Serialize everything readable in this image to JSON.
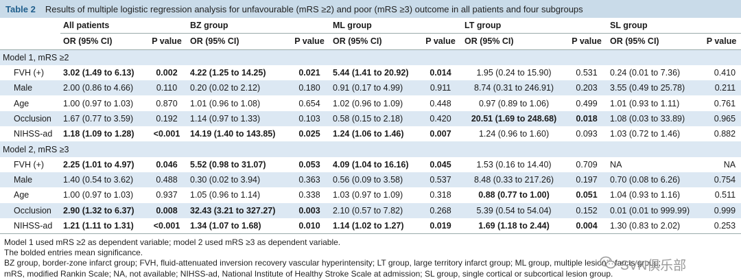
{
  "title": {
    "tag": "Table 2",
    "text": "Results of multiple logistic regression analysis for unfavourable (mRS ≥2) and poor (mRS ≥3) outcome in all patients and four subgroups"
  },
  "groups": [
    "All patients",
    "BZ group",
    "ML group",
    "LT group",
    "SL group"
  ],
  "subheaders": {
    "or": "OR (95% CI)",
    "p": "P value"
  },
  "models": [
    {
      "label": "Model 1, mRS ≥2",
      "rows": [
        {
          "label": "FVH (+)",
          "cells": [
            {
              "or": "3.02 (1.49 to 6.13)",
              "p": "0.002",
              "bold": true
            },
            {
              "or": "4.22 (1.25 to 14.25)",
              "p": "0.021",
              "bold": true
            },
            {
              "or": "5.44 (1.41 to 20.92)",
              "p": "0.014",
              "bold": true
            },
            {
              "or": "1.95 (0.24 to 15.90)",
              "p": "0.531",
              "bold": false
            },
            {
              "or": "0.24 (0.01 to 7.36)",
              "p": "0.410",
              "bold": false
            }
          ]
        },
        {
          "label": "Male",
          "cells": [
            {
              "or": "2.00 (0.86 to 4.66)",
              "p": "0.110",
              "bold": false
            },
            {
              "or": "0.20 (0.02 to 2.12)",
              "p": "0.180",
              "bold": false
            },
            {
              "or": "0.91 (0.17 to 4.99)",
              "p": "0.911",
              "bold": false
            },
            {
              "or": "8.74 (0.31 to 246.91)",
              "p": "0.203",
              "bold": false
            },
            {
              "or": "3.55 (0.49 to 25.78)",
              "p": "0.211",
              "bold": false
            }
          ]
        },
        {
          "label": "Age",
          "cells": [
            {
              "or": "1.00 (0.97 to 1.03)",
              "p": "0.870",
              "bold": false
            },
            {
              "or": "1.01 (0.96 to 1.08)",
              "p": "0.654",
              "bold": false
            },
            {
              "or": "1.02 (0.96 to 1.09)",
              "p": "0.448",
              "bold": false
            },
            {
              "or": "0.97 (0.89 to 1.06)",
              "p": "0.499",
              "bold": false
            },
            {
              "or": "1.01 (0.93 to 1.11)",
              "p": "0.761",
              "bold": false
            }
          ]
        },
        {
          "label": "Occlusion",
          "cells": [
            {
              "or": "1.67 (0.77 to 3.59)",
              "p": "0.192",
              "bold": false
            },
            {
              "or": "1.14 (0.97 to 1.33)",
              "p": "0.103",
              "bold": false
            },
            {
              "or": "0.58 (0.15 to 2.18)",
              "p": "0.420",
              "bold": false
            },
            {
              "or": "20.51 (1.69 to 248.68)",
              "p": "0.018",
              "bold": true
            },
            {
              "or": "1.08 (0.03 to 33.89)",
              "p": "0.965",
              "bold": false
            }
          ]
        },
        {
          "label": "NIHSS-ad",
          "cells": [
            {
              "or": "1.18 (1.09 to 1.28)",
              "p": "<0.001",
              "bold": true
            },
            {
              "or": "14.19 (1.40 to 143.85)",
              "p": "0.025",
              "bold": true
            },
            {
              "or": "1.24 (1.06 to 1.46)",
              "p": "0.007",
              "bold": true
            },
            {
              "or": "1.24 (0.96 to 1.60)",
              "p": "0.093",
              "bold": false
            },
            {
              "or": "1.03 (0.72 to 1.46)",
              "p": "0.882",
              "bold": false
            }
          ]
        }
      ]
    },
    {
      "label": "Model 2, mRS ≥3",
      "rows": [
        {
          "label": "FVH (+)",
          "cells": [
            {
              "or": "2.25 (1.01 to 4.97)",
              "p": "0.046",
              "bold": true
            },
            {
              "or": "5.52 (0.98 to 31.07)",
              "p": "0.053",
              "bold": true
            },
            {
              "or": "4.09 (1.04 to 16.16)",
              "p": "0.045",
              "bold": true
            },
            {
              "or": "1.53 (0.16 to 14.40)",
              "p": "0.709",
              "bold": false
            },
            {
              "or": "NA",
              "p": "NA",
              "bold": false
            }
          ]
        },
        {
          "label": "Male",
          "cells": [
            {
              "or": "1.40 (0.54 to 3.62)",
              "p": "0.488",
              "bold": false
            },
            {
              "or": "0.30 (0.02 to 3.94)",
              "p": "0.363",
              "bold": false
            },
            {
              "or": "0.56 (0.09 to 3.58)",
              "p": "0.537",
              "bold": false
            },
            {
              "or": "8.48 (0.33 to 217.26)",
              "p": "0.197",
              "bold": false
            },
            {
              "or": "0.70 (0.08 to 6.26)",
              "p": "0.754",
              "bold": false
            }
          ]
        },
        {
          "label": "Age",
          "cells": [
            {
              "or": "1.00 (0.97 to 1.03)",
              "p": "0.937",
              "bold": false
            },
            {
              "or": "1.05 (0.96 to 1.14)",
              "p": "0.338",
              "bold": false
            },
            {
              "or": "1.03 (0.97 to 1.09)",
              "p": "0.318",
              "bold": false
            },
            {
              "or": "0.88 (0.77 to 1.00)",
              "p": "0.051",
              "bold": true
            },
            {
              "or": "1.04 (0.93 to 1.16)",
              "p": "0.511",
              "bold": false
            }
          ]
        },
        {
          "label": "Occlusion",
          "cells": [
            {
              "or": "2.90 (1.32 to 6.37)",
              "p": "0.008",
              "bold": true
            },
            {
              "or": "32.43 (3.21 to 327.27)",
              "p": "0.003",
              "bold": true
            },
            {
              "or": "2.10 (0.57 to 7.82)",
              "p": "0.268",
              "bold": false
            },
            {
              "or": "5.39 (0.54 to 54.04)",
              "p": "0.152",
              "bold": false
            },
            {
              "or": "0.01 (0.01 to 999.99)",
              "p": "0.999",
              "bold": false
            }
          ]
        },
        {
          "label": "NIHSS-ad",
          "cells": [
            {
              "or": "1.21 (1.11 to 1.31)",
              "p": "<0.001",
              "bold": true
            },
            {
              "or": "1.34 (1.07 to 1.68)",
              "p": "0.010",
              "bold": true
            },
            {
              "or": "1.14 (1.02 to 1.27)",
              "p": "0.019",
              "bold": true
            },
            {
              "or": "1.69 (1.18 to 2.44)",
              "p": "0.004",
              "bold": true
            },
            {
              "or": "1.30 (0.83 to 2.02)",
              "p": "0.253",
              "bold": false
            }
          ]
        }
      ]
    }
  ],
  "notes": [
    "Model 1 used mRS ≥2 as dependent variable; model 2 used mRS ≥3 as dependent variable.",
    "The bolded entries mean significance.",
    "BZ group, border-zone infarct group; FVH, fluid-attenuated inversion recovery vascular hyperintensity; LT group, large territory infarct group; ML group, multiple lesion infarcts group;",
    "mRS, modified Rankin Scale; NA, not available; NIHSS-ad, National Institute of Healthy Stroke Scale at admission; SL group, single cortical or subcortical lesion group."
  ],
  "watermark": {
    "text": "SVN俱乐部",
    "icon": "wechat-icon"
  },
  "colors": {
    "title_bar": "#c9dbe9",
    "title_tag": "#1f5e8c",
    "row_shade": "#dce8f3"
  }
}
